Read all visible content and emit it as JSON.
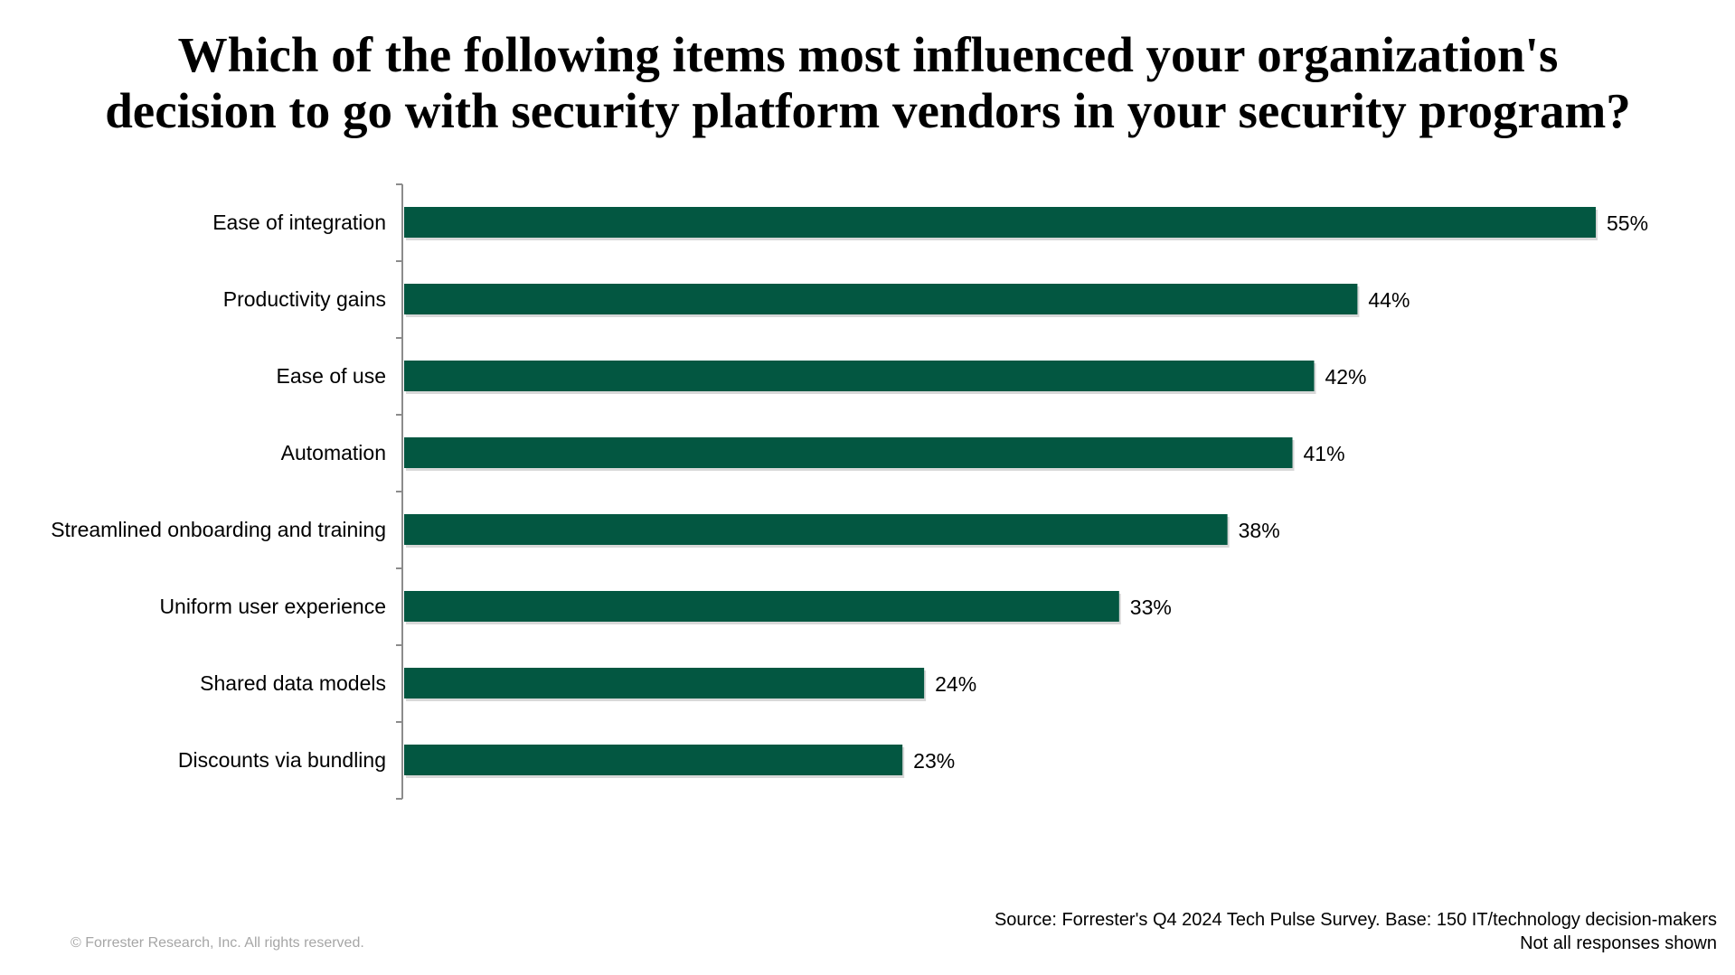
{
  "title_lines": [
    "Which of the following items most influenced your organization's",
    "decision to go with security platform vendors in your security program?"
  ],
  "chart_data": {
    "type": "bar",
    "orientation": "horizontal",
    "title": "Which of the following items most influenced your organization's decision to go with security platform vendors in your security program?",
    "categories": [
      "Ease of integration",
      "Productivity gains",
      "Ease of use",
      "Automation",
      "Streamlined onboarding and training",
      "Uniform user experience",
      "Shared data models",
      "Discounts via bundling"
    ],
    "values": [
      55,
      44,
      42,
      41,
      38,
      33,
      24,
      23
    ],
    "value_labels": [
      "55%",
      "44%",
      "42%",
      "41%",
      "38%",
      "33%",
      "24%",
      "23%"
    ],
    "unit": "%",
    "xlim": [
      0,
      55
    ],
    "grid": false,
    "legend": "none",
    "bar_color": "#035741"
  },
  "footer": {
    "source_line1": "Source: Forrester's Q4 2024 Tech Pulse Survey. Base: 150 IT/technology decision-makers",
    "source_line2": "Not all responses shown",
    "copyright": "© Forrester Research, Inc. All rights reserved."
  }
}
